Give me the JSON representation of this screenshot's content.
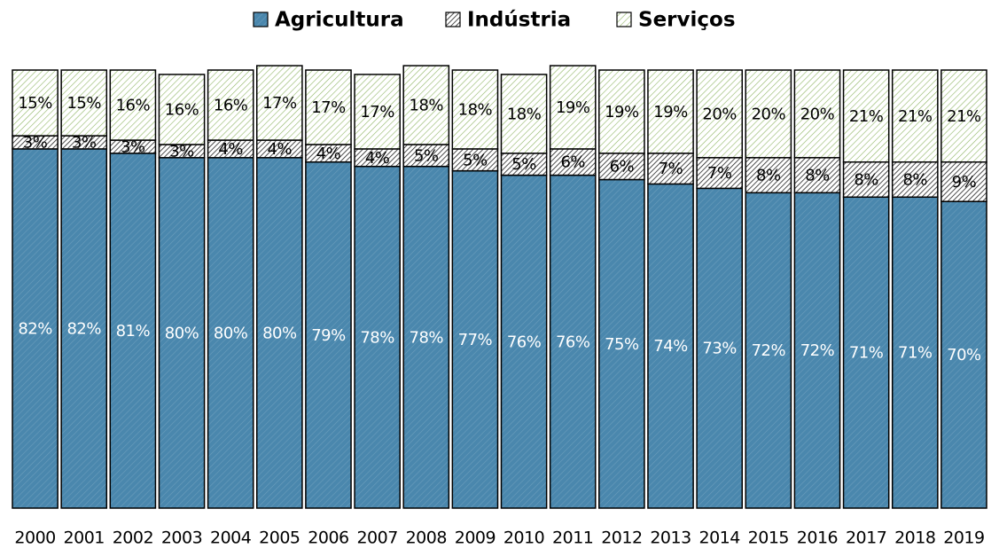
{
  "chart_data": {
    "type": "stacked_bar",
    "categories": [
      "2000",
      "2001",
      "2002",
      "2003",
      "2004",
      "2005",
      "2006",
      "2007",
      "2008",
      "2009",
      "2010",
      "2011",
      "2012",
      "2013",
      "2014",
      "2015",
      "2016",
      "2017",
      "2018",
      "2019"
    ],
    "series": [
      {
        "name": "Agricultura",
        "color": "#4a87ad",
        "values": [
          82,
          82,
          81,
          80,
          80,
          80,
          79,
          78,
          78,
          77,
          76,
          76,
          75,
          74,
          73,
          72,
          72,
          71,
          71,
          70
        ],
        "value_labels": [
          "82%",
          "82%",
          "81%",
          "80%",
          "80%",
          "80%",
          "79%",
          "78%",
          "78%",
          "77%",
          "76%",
          "76%",
          "75%",
          "74%",
          "73%",
          "72%",
          "72%",
          "71%",
          "71%",
          "70%"
        ]
      },
      {
        "name": "Indústria",
        "color": "#222222",
        "values": [
          3,
          3,
          3,
          3,
          4,
          4,
          4,
          4,
          5,
          5,
          5,
          6,
          6,
          7,
          7,
          8,
          8,
          8,
          8,
          9
        ],
        "value_labels": [
          "3%",
          "3%",
          "3%",
          "3%",
          "4%",
          "4%",
          "4%",
          "4%",
          "5%",
          "5%",
          "5%",
          "6%",
          "6%",
          "7%",
          "7%",
          "8%",
          "8%",
          "8%",
          "8%",
          "9%"
        ]
      },
      {
        "name": "Serviços",
        "color": "#8fb564",
        "values": [
          15,
          15,
          16,
          16,
          16,
          17,
          17,
          17,
          18,
          18,
          18,
          19,
          19,
          19,
          20,
          20,
          20,
          21,
          21,
          21
        ],
        "value_labels": [
          "15%",
          "15%",
          "16%",
          "16%",
          "16%",
          "17%",
          "17%",
          "17%",
          "18%",
          "18%",
          "18%",
          "19%",
          "19%",
          "19%",
          "20%",
          "20%",
          "20%",
          "21%",
          "21%",
          "21%"
        ]
      }
    ],
    "ylim": [
      0,
      100
    ],
    "legend": "top"
  }
}
